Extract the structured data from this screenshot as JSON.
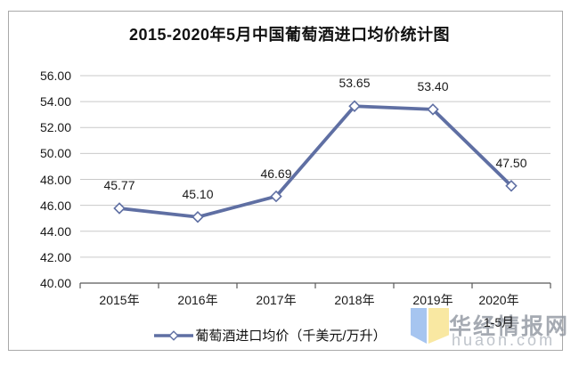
{
  "title": "2015-2020年5月中国葡萄酒进口均价统计图",
  "legend": {
    "label": "葡萄酒进口均价（千美元/万升）"
  },
  "watermark": {
    "site_name": "华经情报网",
    "site_url": "huaon.com"
  },
  "chart_data": {
    "type": "line",
    "title": "2015-2020年5月中国葡萄酒进口均价统计图",
    "categories": [
      "2015年",
      "2016年",
      "2017年",
      "2018年",
      "2019年",
      "2020年"
    ],
    "category_sublabels": [
      "",
      "",
      "",
      "",
      "",
      "1-5月"
    ],
    "series": [
      {
        "name": "葡萄酒进口均价（千美元/万升）",
        "values": [
          45.77,
          45.1,
          46.69,
          53.65,
          53.4,
          47.5
        ]
      }
    ],
    "data_labels": [
      "45.77",
      "45.10",
      "46.69",
      "53.65",
      "53.40",
      "47.50"
    ],
    "y_ticks": [
      "56.00",
      "54.00",
      "52.00",
      "50.00",
      "48.00",
      "46.00",
      "44.00",
      "42.00",
      "40.00"
    ],
    "ylim": [
      40,
      56
    ],
    "y_step": 2,
    "xlabel": "",
    "ylabel": "",
    "grid": "horizontal",
    "legend_position": "bottom",
    "marker": "diamond",
    "colors": {
      "line": "#5F6FA3",
      "marker_fill": "#FFFFFF",
      "grid": "#C9C9C9",
      "axis": "#595959",
      "title_text": "#111111",
      "label_text": "#1A1A1A",
      "watermark_blue": "#A6C5F0",
      "watermark_yellow": "#F9E8A2",
      "watermark_text": "#8F96A0",
      "watermark_url": "#BFC4CB"
    }
  }
}
